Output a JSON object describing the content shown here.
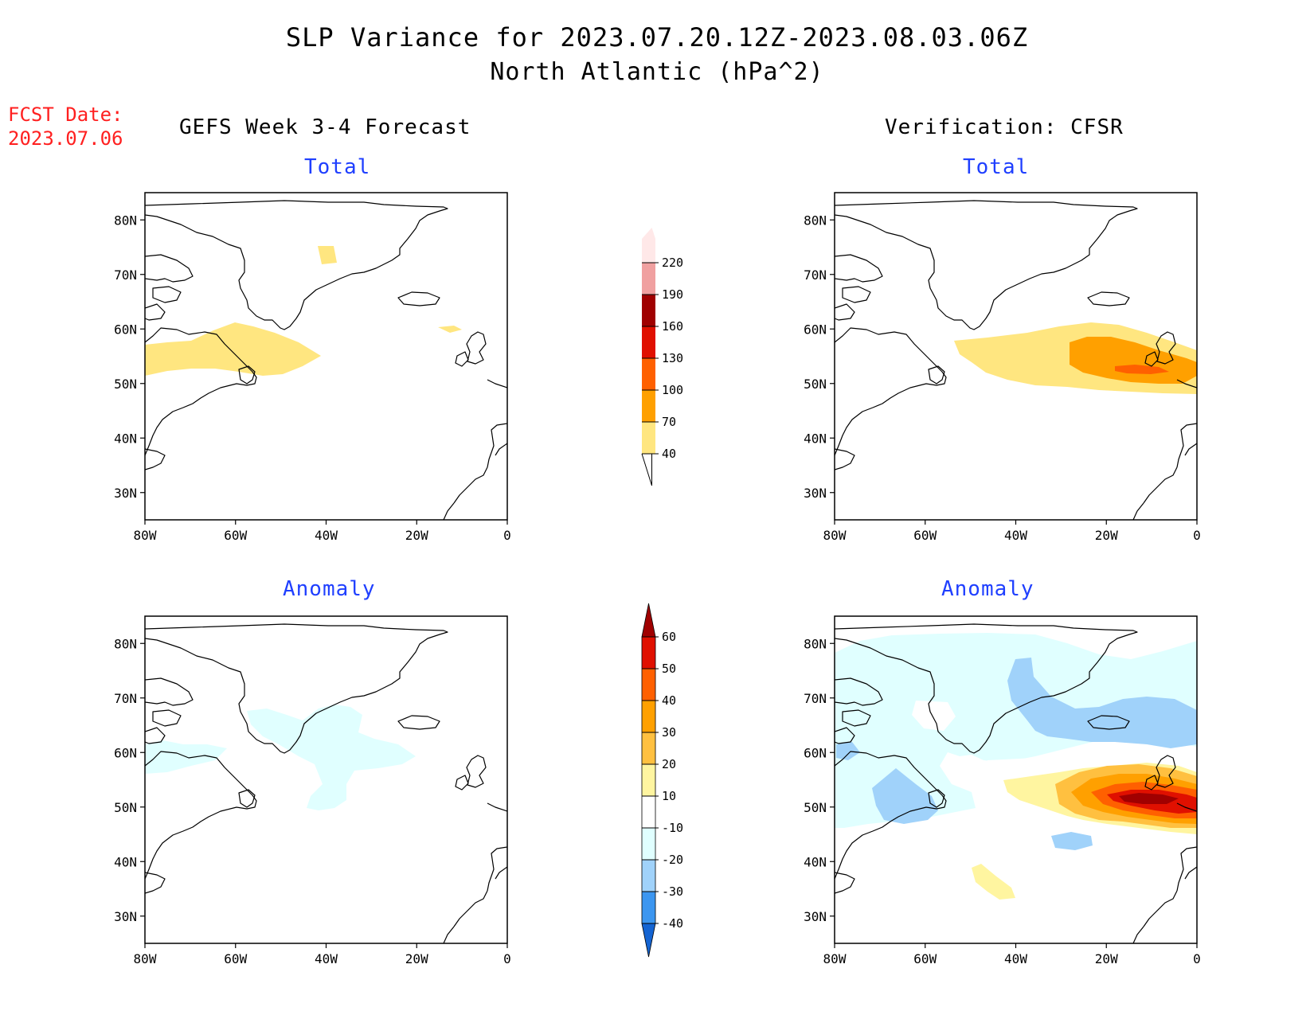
{
  "title_line1": "SLP Variance for 2023.07.20.12Z-2023.08.03.06Z",
  "title_line2": "North Atlantic (hPa^2)",
  "fcst_label": "FCST Date:",
  "fcst_date": "2023.07.06",
  "left_column_title": "GEFS Week 3-4 Forecast",
  "right_column_title": "Verification: CFSR",
  "panel_titles": {
    "forecast_total": "Total",
    "forecast_anomaly": "Anomaly",
    "verification_total": "Total",
    "verification_anomaly": "Anomaly"
  },
  "map_axes": {
    "lat_labels": [
      "80N",
      "70N",
      "60N",
      "50N",
      "40N",
      "30N"
    ],
    "lat_values": [
      80,
      70,
      60,
      50,
      40,
      30
    ],
    "lon_labels": [
      "80W",
      "60W",
      "40W",
      "20W",
      "0"
    ],
    "lon_values": [
      -80,
      -60,
      -40,
      -20,
      0
    ],
    "lon_range": [
      -80,
      0
    ],
    "lat_range": [
      25,
      85
    ]
  },
  "total_colorbar": {
    "levels": [
      "40",
      "70",
      "100",
      "130",
      "160",
      "190",
      "220"
    ],
    "colors": [
      "#ffe680",
      "#ffa000",
      "#ff6000",
      "#e01000",
      "#a00000",
      "#f0a0a0",
      "#ffe8e8"
    ]
  },
  "anomaly_colorbar": {
    "levels": [
      "60",
      "50",
      "40",
      "30",
      "20",
      "10",
      "-10",
      "-20",
      "-30",
      "-40"
    ],
    "colors_top_to_bottom": [
      "#a00000",
      "#e01000",
      "#ff6000",
      "#ffa000",
      "#ffc040",
      "#fff5a0",
      "#ffffff",
      "#e0ffff",
      "#a0d2fa",
      "#3c96f0",
      "#1464d2"
    ]
  }
}
